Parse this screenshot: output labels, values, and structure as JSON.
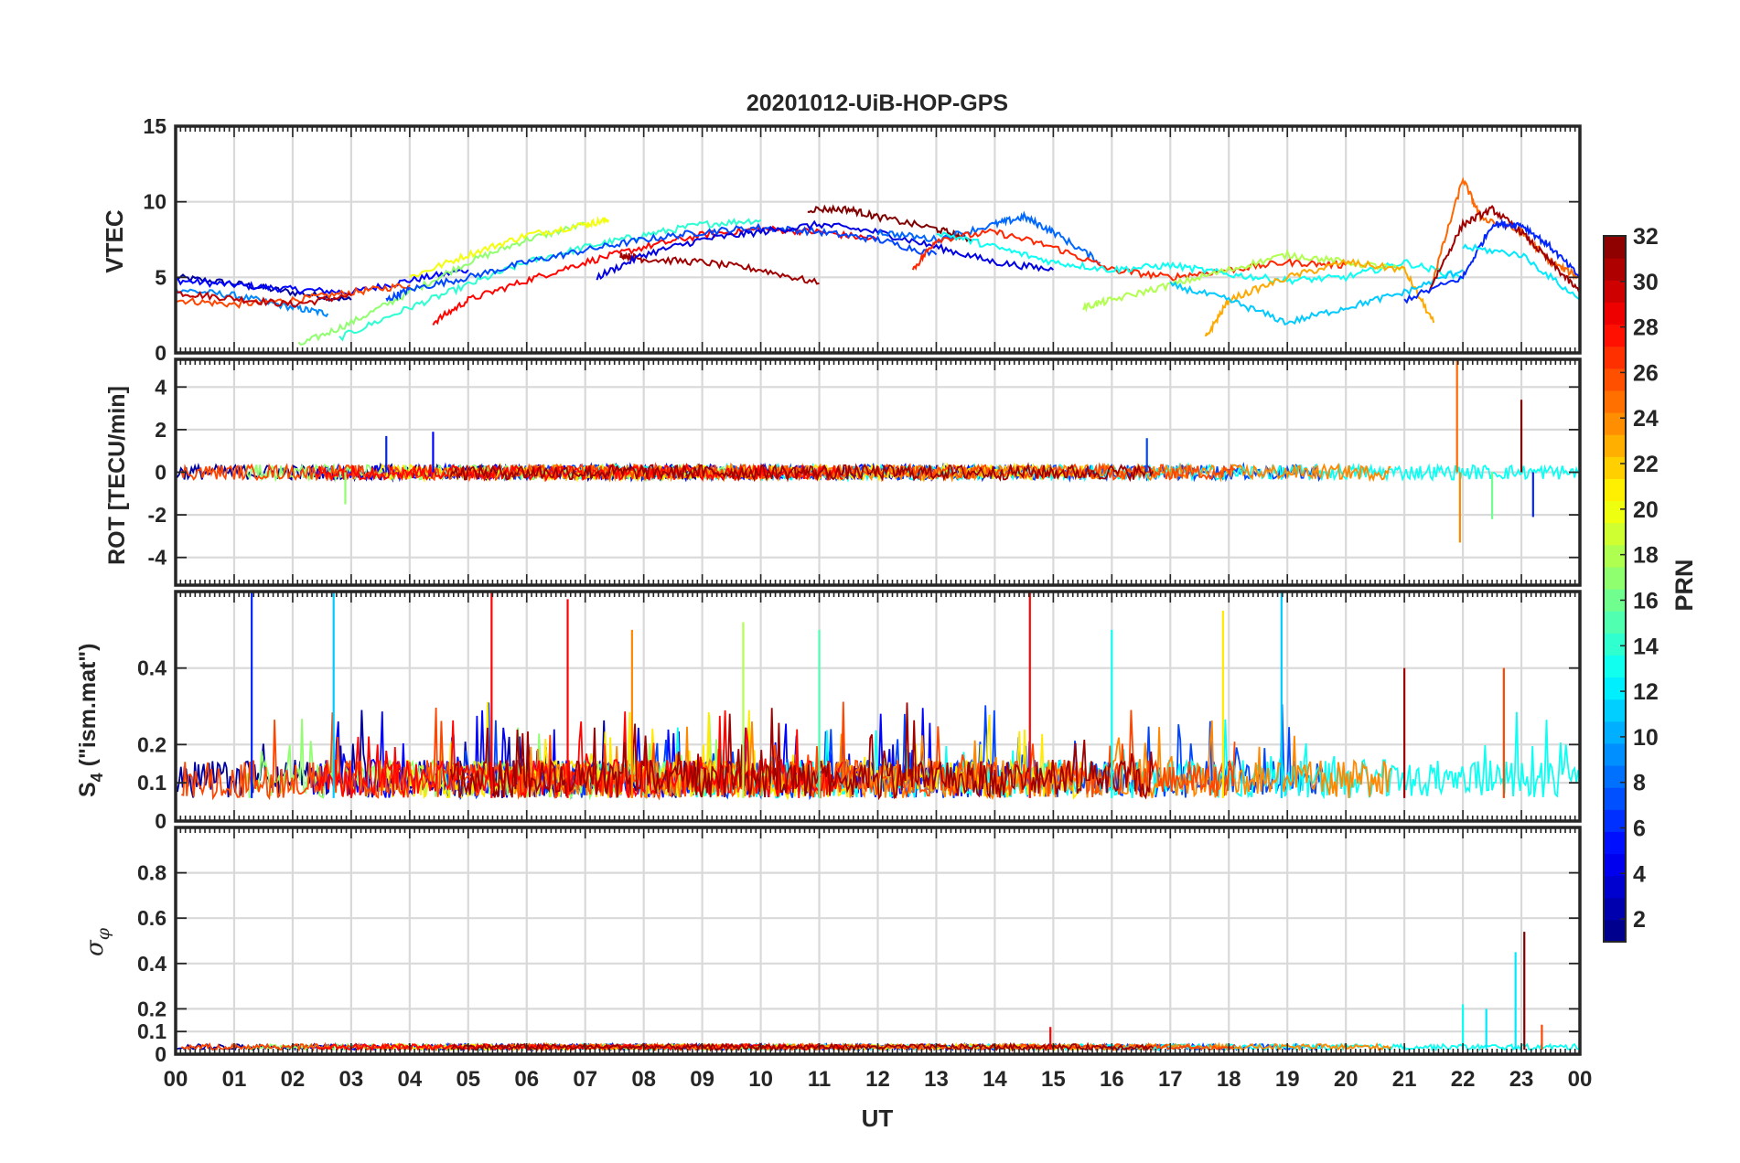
{
  "chart_data": [
    {
      "type": "line",
      "panel": "vtec",
      "title": "20201012-UiB-HOP-GPS",
      "ylabel": "VTEC",
      "ylim": [
        0,
        15
      ],
      "yticks": [
        0,
        5,
        10,
        15
      ],
      "xlim": [
        0,
        24
      ],
      "grid": true,
      "series": [
        {
          "name": "PRN 2",
          "x": [
            0,
            1,
            2,
            3
          ],
          "y": [
            5.0,
            4.6,
            4.0,
            3.5
          ]
        },
        {
          "name": "PRN 5",
          "x": [
            0,
            1,
            2,
            3,
            4,
            5
          ],
          "y": [
            4.8,
            4.5,
            4.2,
            4.0,
            4.8,
            5.5
          ]
        },
        {
          "name": "PRN 9",
          "x": [
            0,
            1,
            2,
            2.6
          ],
          "y": [
            4.2,
            3.8,
            3.0,
            2.6
          ]
        },
        {
          "name": "PRN 26",
          "x": [
            0,
            1,
            2,
            3,
            4
          ],
          "y": [
            3.5,
            3.2,
            3.5,
            4.0,
            4.5
          ]
        },
        {
          "name": "PRN 30",
          "x": [
            0,
            1,
            2,
            3
          ],
          "y": [
            4.0,
            3.6,
            3.2,
            3.8
          ]
        },
        {
          "name": "PRN 17",
          "x": [
            2.1,
            3,
            4,
            5,
            6,
            7
          ],
          "y": [
            0.5,
            2.0,
            4.0,
            6.0,
            7.5,
            8.5
          ]
        },
        {
          "name": "PRN 14",
          "x": [
            2.8,
            4,
            5,
            6,
            7,
            8,
            9,
            10
          ],
          "y": [
            1.0,
            3.0,
            4.5,
            6.0,
            7.0,
            7.8,
            8.5,
            8.8
          ]
        },
        {
          "name": "PRN 20",
          "x": [
            4,
            5,
            6,
            7,
            7.4
          ],
          "y": [
            5.0,
            6.5,
            7.8,
            8.5,
            8.8
          ]
        },
        {
          "name": "PRN 28",
          "x": [
            4.4,
            5,
            6,
            7,
            8,
            9,
            10,
            11,
            12
          ],
          "y": [
            2.0,
            3.5,
            4.8,
            6.0,
            7.0,
            7.8,
            8.2,
            8.0,
            7.5
          ]
        },
        {
          "name": "PRN 7",
          "x": [
            3.6,
            4,
            5,
            6,
            7,
            8,
            9,
            10,
            11,
            12,
            13
          ],
          "y": [
            3.5,
            4.2,
            5.0,
            6.0,
            6.8,
            7.5,
            8.0,
            8.3,
            8.0,
            7.5,
            6.5
          ]
        },
        {
          "name": "PRN 31",
          "x": [
            7.6,
            8,
            9,
            10,
            11
          ],
          "y": [
            6.5,
            6.2,
            6.0,
            5.5,
            4.6
          ]
        },
        {
          "name": "PRN 4",
          "x": [
            7.2,
            8,
            9,
            10,
            11,
            12,
            13,
            14,
            15
          ],
          "y": [
            5.0,
            6.5,
            7.5,
            8.0,
            8.5,
            8.0,
            7.0,
            6.0,
            5.5
          ]
        },
        {
          "name": "PRN 32",
          "x": [
            10.8,
            11.5,
            12,
            13,
            13.6
          ],
          "y": [
            9.5,
            9.5,
            9.0,
            8.2,
            7.5
          ]
        },
        {
          "name": "PRN 8",
          "x": [
            12,
            13,
            14,
            14.5,
            15,
            15.8
          ],
          "y": [
            8.0,
            7.5,
            8.5,
            9.0,
            8.0,
            6.0
          ]
        },
        {
          "name": "PRN 27",
          "x": [
            12.6,
            13,
            14,
            15,
            16,
            17,
            18,
            19,
            20
          ],
          "y": [
            5.5,
            7.5,
            8.0,
            7.0,
            5.5,
            5.0,
            5.5,
            6.0,
            5.8
          ]
        },
        {
          "name": "PRN 13",
          "x": [
            13,
            14,
            15,
            16,
            17,
            18,
            19,
            20,
            21,
            22
          ],
          "y": [
            8.0,
            7.0,
            6.0,
            5.5,
            5.8,
            5.2,
            4.8,
            5.0,
            6.0,
            5.0
          ]
        },
        {
          "name": "PRN 18",
          "x": [
            15.5,
            16,
            17,
            18,
            19,
            20,
            21
          ],
          "y": [
            3.0,
            3.5,
            4.5,
            5.5,
            6.5,
            6.0,
            5.5
          ]
        },
        {
          "name": "PRN 23",
          "x": [
            17.6,
            18,
            19,
            20,
            21,
            21.5
          ],
          "y": [
            1.0,
            3.5,
            5.0,
            6.0,
            5.5,
            2.0
          ]
        },
        {
          "name": "PRN 11",
          "x": [
            17,
            18,
            19,
            20,
            21,
            22
          ],
          "y": [
            4.5,
            3.5,
            2.0,
            3.0,
            4.0,
            5.5
          ]
        },
        {
          "name": "PRN 25",
          "x": [
            21.5,
            22,
            22.3,
            23,
            23.5,
            24
          ],
          "y": [
            5.0,
            11.5,
            9.0,
            8.0,
            6.0,
            5.0
          ]
        },
        {
          "name": "PRN 31",
          "x": [
            21.4,
            22,
            22.5,
            23,
            23.5,
            24
          ],
          "y": [
            4.0,
            8.5,
            9.5,
            8.0,
            6.0,
            4.0
          ]
        },
        {
          "name": "PRN 6",
          "x": [
            21,
            22,
            22.5,
            23,
            23.5,
            24
          ],
          "y": [
            3.5,
            5.0,
            8.5,
            8.5,
            7.0,
            5.0
          ]
        },
        {
          "name": "PRN 12",
          "x": [
            22,
            23,
            24
          ],
          "y": [
            7.0,
            6.5,
            3.5
          ]
        }
      ]
    },
    {
      "type": "line",
      "panel": "rot",
      "ylabel": "ROT [TECU/min]",
      "ylim": [
        -5.3,
        5.3
      ],
      "yticks": [
        -4,
        -2,
        0,
        2,
        4
      ],
      "xlim": [
        0,
        24
      ],
      "grid": true,
      "typical_range": [
        -0.5,
        0.5
      ],
      "spikes": [
        {
          "x": 3.6,
          "y": 1.7,
          "prn": 6
        },
        {
          "x": 4.4,
          "y": 1.9,
          "prn": 5
        },
        {
          "x": 2.9,
          "y": -1.5,
          "prn": 17
        },
        {
          "x": 16.6,
          "y": 1.6,
          "prn": 7
        },
        {
          "x": 21.9,
          "y": 5.3,
          "prn": 25
        },
        {
          "x": 21.95,
          "y": -3.3,
          "prn": 24
        },
        {
          "x": 23.0,
          "y": 3.4,
          "prn": 32
        },
        {
          "x": 22.5,
          "y": -2.2,
          "prn": 16
        },
        {
          "x": 23.2,
          "y": -2.1,
          "prn": 6
        }
      ]
    },
    {
      "type": "line",
      "panel": "s4",
      "ylabel": "S4 (\"ism.mat\")",
      "ylim": [
        0,
        0.6
      ],
      "yticks": [
        0,
        0.1,
        0.2,
        0.4
      ],
      "xlim": [
        0,
        24
      ],
      "grid": true,
      "baseline": 0.06,
      "peaks": [
        {
          "x": 1.3,
          "y": 0.6,
          "prn": 6
        },
        {
          "x": 2.7,
          "y": 0.6,
          "prn": 11
        },
        {
          "x": 5.4,
          "y": 0.6,
          "prn": 28
        },
        {
          "x": 6.7,
          "y": 0.58,
          "prn": 28
        },
        {
          "x": 7.8,
          "y": 0.5,
          "prn": 24
        },
        {
          "x": 9.7,
          "y": 0.52,
          "prn": 18
        },
        {
          "x": 11.0,
          "y": 0.5,
          "prn": 15
        },
        {
          "x": 14.6,
          "y": 0.6,
          "prn": 28
        },
        {
          "x": 16.0,
          "y": 0.5,
          "prn": 13
        },
        {
          "x": 17.9,
          "y": 0.55,
          "prn": 21
        },
        {
          "x": 18.9,
          "y": 0.6,
          "prn": 11
        },
        {
          "x": 21.0,
          "y": 0.4,
          "prn": 31
        },
        {
          "x": 22.7,
          "y": 0.4,
          "prn": 26
        }
      ]
    },
    {
      "type": "line",
      "panel": "sigma_phi",
      "ylabel": "σφ",
      "ylim": [
        0,
        1.0
      ],
      "yticks": [
        0,
        0.1,
        0.2,
        0.4,
        0.6,
        0.8
      ],
      "xlim": [
        0,
        24
      ],
      "grid": true,
      "baseline": 0.02,
      "peaks": [
        {
          "x": 14.95,
          "y": 0.12,
          "prn": 28
        },
        {
          "x": 22.0,
          "y": 0.22,
          "prn": 13
        },
        {
          "x": 22.4,
          "y": 0.2,
          "prn": 12
        },
        {
          "x": 22.9,
          "y": 0.45,
          "prn": 12
        },
        {
          "x": 23.05,
          "y": 0.54,
          "prn": 32
        },
        {
          "x": 23.35,
          "y": 0.13,
          "prn": 26
        }
      ]
    }
  ],
  "xaxis": {
    "label": "UT",
    "ticks": [
      "00",
      "01",
      "02",
      "03",
      "04",
      "05",
      "06",
      "07",
      "08",
      "09",
      "10",
      "11",
      "12",
      "13",
      "14",
      "15",
      "16",
      "17",
      "18",
      "19",
      "20",
      "21",
      "22",
      "23",
      "00"
    ]
  },
  "colorbar": {
    "label": "PRN",
    "min": 1,
    "max": 32,
    "ticks": [
      2,
      4,
      6,
      8,
      10,
      12,
      14,
      16,
      18,
      20,
      22,
      24,
      26,
      28,
      30,
      32
    ],
    "colormap": "jet"
  }
}
